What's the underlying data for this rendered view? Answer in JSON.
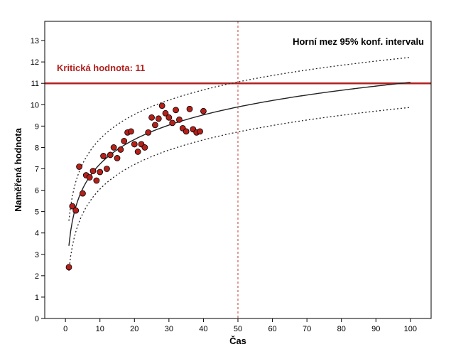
{
  "chart_data": {
    "type": "scatter",
    "xlabel": "Čas",
    "ylabel": "Naměřená hodnota",
    "xlim": [
      -6,
      106
    ],
    "ylim": [
      0,
      13.9
    ],
    "x_ticks": [
      0,
      10,
      20,
      30,
      40,
      50,
      60,
      70,
      80,
      90,
      100
    ],
    "y_ticks": [
      0,
      1,
      2,
      3,
      4,
      5,
      6,
      7,
      8,
      9,
      10,
      11,
      12,
      13
    ],
    "grid": false,
    "points": [
      [
        1,
        2.4
      ],
      [
        2,
        5.25
      ],
      [
        3,
        5.05
      ],
      [
        4,
        7.1
      ],
      [
        5,
        5.85
      ],
      [
        6,
        6.7
      ],
      [
        7,
        6.6
      ],
      [
        8,
        6.9
      ],
      [
        9,
        6.45
      ],
      [
        10,
        6.85
      ],
      [
        11,
        7.6
      ],
      [
        12,
        7.0
      ],
      [
        13,
        7.65
      ],
      [
        14,
        8.0
      ],
      [
        15,
        7.5
      ],
      [
        16,
        7.9
      ],
      [
        17,
        8.3
      ],
      [
        18,
        8.7
      ],
      [
        19,
        8.75
      ],
      [
        20,
        8.15
      ],
      [
        21,
        7.8
      ],
      [
        22,
        8.15
      ],
      [
        23,
        8.0
      ],
      [
        24,
        8.7
      ],
      [
        25,
        9.4
      ],
      [
        26,
        9.05
      ],
      [
        27,
        9.35
      ],
      [
        28,
        9.95
      ],
      [
        29,
        9.6
      ],
      [
        30,
        9.4
      ],
      [
        31,
        9.15
      ],
      [
        32,
        9.75
      ],
      [
        33,
        9.3
      ],
      [
        34,
        8.9
      ],
      [
        35,
        8.75
      ],
      [
        36,
        9.8
      ],
      [
        37,
        8.85
      ],
      [
        38,
        8.7
      ],
      [
        39,
        8.75
      ],
      [
        40,
        9.7
      ]
    ],
    "fit": {
      "model": "logarithmic",
      "a": 3.4,
      "b": 1.66,
      "x_range": [
        1,
        100
      ]
    },
    "confidence_band": {
      "level": "95%",
      "offset": 1.17,
      "x_range": [
        1,
        100
      ]
    },
    "reference_lines": [
      {
        "orientation": "horizontal",
        "value": 11,
        "label": "Kritická hodnota: 11",
        "color": "#b0201e"
      },
      {
        "orientation": "vertical",
        "value": 50,
        "color": "#c0392b"
      }
    ],
    "annotation": "Horní mez 95% konf. intervalu",
    "colors": {
      "points": "#b5201a",
      "fit": "#222222",
      "band": "#222222",
      "critical": "#b0201e"
    }
  }
}
